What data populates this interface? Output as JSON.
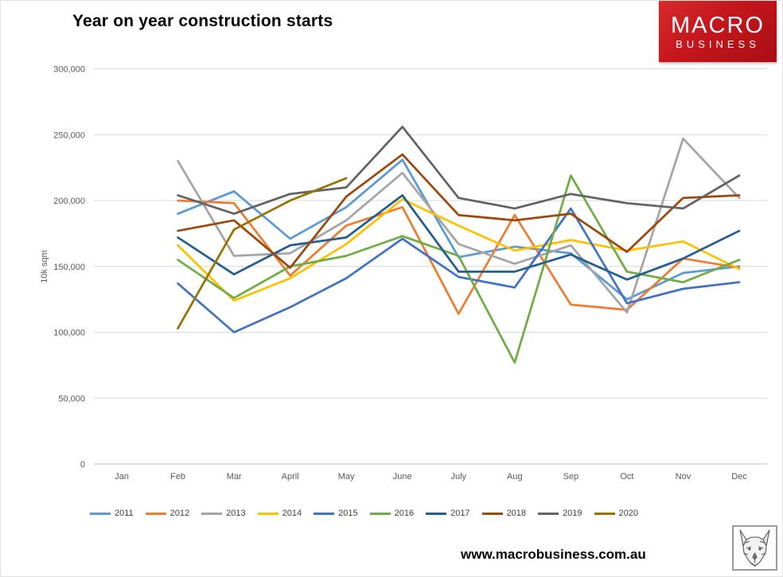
{
  "page": {
    "title": "Year on year construction starts",
    "footer_url": "www.macrobusiness.com.au"
  },
  "logo": {
    "line1": "MACRO",
    "line2": "BUSINESS",
    "bg_color": "#c4161c",
    "text_color": "#ffffff"
  },
  "wolf_logo": "wolf-sketch-icon",
  "chart_data": {
    "type": "line",
    "title": "Year on year construction starts",
    "xlabel": "",
    "ylabel": "10k sqm",
    "ylim": [
      0,
      300000
    ],
    "ytick_interval": 50000,
    "ytick_labels": [
      "0",
      "50,000",
      "100,000",
      "150,000",
      "200,000",
      "250,000",
      "300,000"
    ],
    "grid": true,
    "legend_position": "bottom",
    "categories": [
      "Jan",
      "Feb",
      "Mar",
      "April",
      "May",
      "June",
      "July",
      "Aug",
      "Sep",
      "Oct",
      "Nov",
      "Dec"
    ],
    "series": [
      {
        "name": "2011",
        "color": "#5B9BD5",
        "values": [
          null,
          190000,
          207000,
          171000,
          195000,
          231000,
          157000,
          165000,
          160000,
          125000,
          145000,
          150000
        ]
      },
      {
        "name": "2012",
        "color": "#ED7D31",
        "values": [
          null,
          200000,
          198000,
          143000,
          181000,
          195000,
          114000,
          189000,
          121000,
          117000,
          156000,
          149000
        ]
      },
      {
        "name": "2013",
        "color": "#A5A5A5",
        "values": [
          null,
          230000,
          158000,
          160000,
          185000,
          221000,
          167000,
          152000,
          166000,
          115000,
          247000,
          202000
        ]
      },
      {
        "name": "2014",
        "color": "#FFC000",
        "values": [
          null,
          166000,
          124000,
          141000,
          167000,
          201000,
          181000,
          162000,
          170000,
          162000,
          169000,
          148000
        ]
      },
      {
        "name": "2015",
        "color": "#4472C4",
        "values": [
          null,
          137000,
          100000,
          119000,
          141000,
          171000,
          142000,
          134000,
          194000,
          122000,
          133000,
          138000
        ]
      },
      {
        "name": "2016",
        "color": "#70AD47",
        "values": [
          null,
          155000,
          126000,
          150000,
          158000,
          173000,
          158000,
          77000,
          219000,
          146000,
          138000,
          155000
        ]
      },
      {
        "name": "2017",
        "color": "#255E91",
        "values": [
          null,
          172000,
          144000,
          166000,
          172000,
          204000,
          146000,
          146000,
          159000,
          140000,
          156000,
          177000
        ]
      },
      {
        "name": "2018",
        "color": "#9E480E",
        "values": [
          null,
          177000,
          185000,
          149000,
          203000,
          235000,
          189000,
          185000,
          190000,
          161000,
          202000,
          204000
        ]
      },
      {
        "name": "2019",
        "color": "#636363",
        "values": [
          null,
          204000,
          190000,
          205000,
          210000,
          256000,
          202000,
          194000,
          205000,
          198000,
          194000,
          219000
        ]
      },
      {
        "name": "2020",
        "color": "#997300",
        "values": [
          null,
          103000,
          178000,
          200000,
          217000,
          null,
          null,
          null,
          null,
          null,
          null,
          null
        ]
      }
    ]
  }
}
